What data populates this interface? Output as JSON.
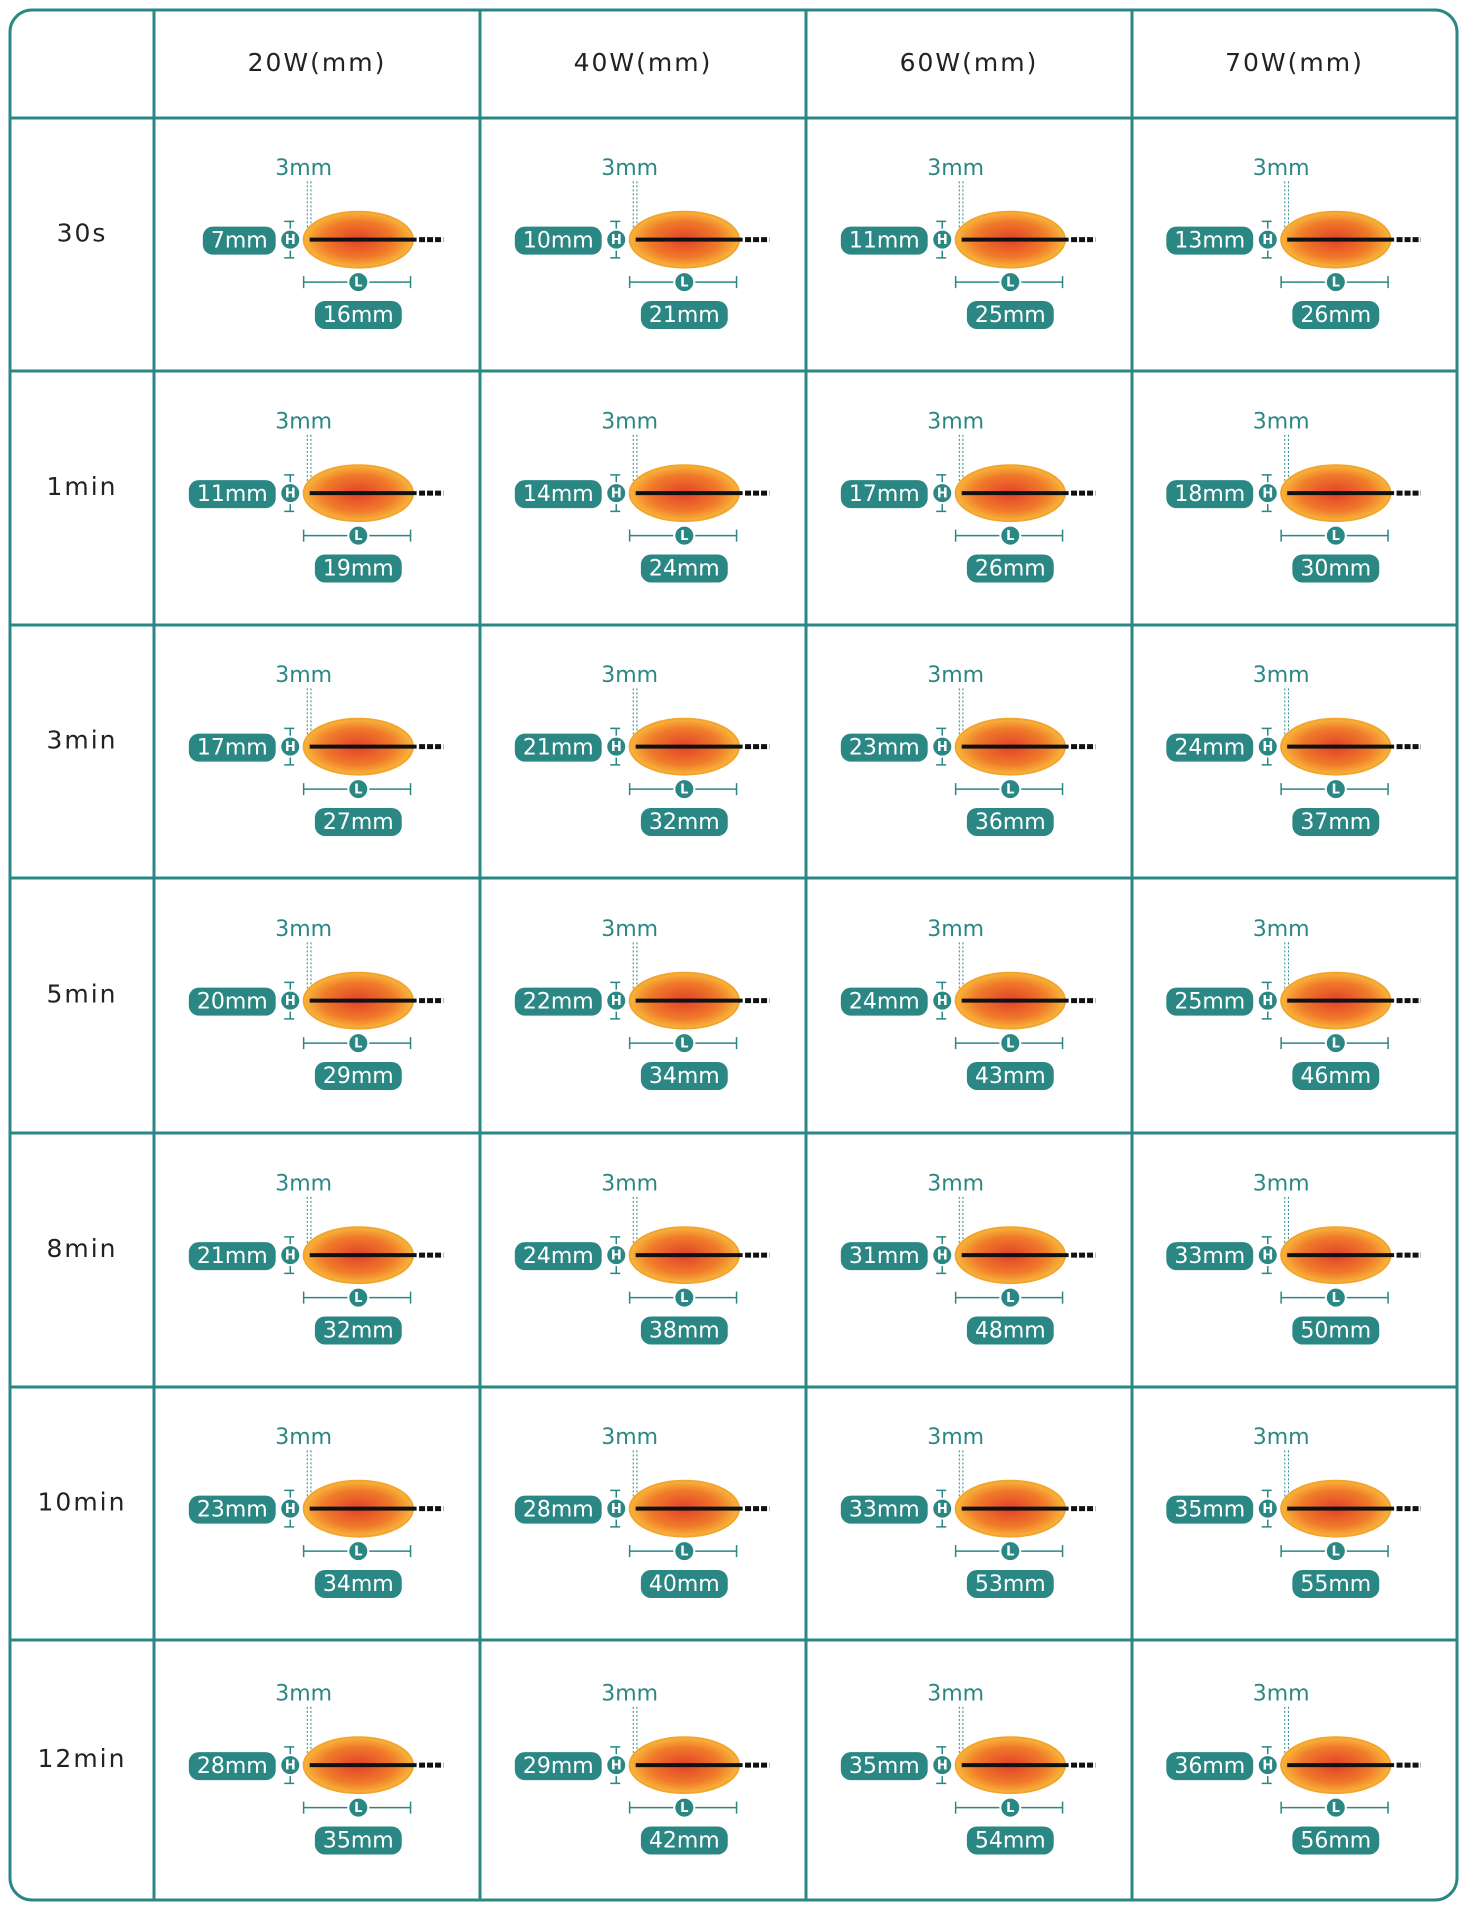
{
  "table": {
    "columns": [
      "20W(mm)",
      "40W(mm)",
      "60W(mm)",
      "70W(mm)"
    ],
    "markers": {
      "height": "H",
      "length": "L"
    },
    "rows": [
      {
        "label": "30s",
        "cells": [
          {
            "tip": "3mm",
            "h": "7mm",
            "l": "16mm"
          },
          {
            "tip": "3mm",
            "h": "10mm",
            "l": "21mm"
          },
          {
            "tip": "3mm",
            "h": "11mm",
            "l": "25mm"
          },
          {
            "tip": "3mm",
            "h": "13mm",
            "l": "26mm"
          }
        ]
      },
      {
        "label": "1min",
        "cells": [
          {
            "tip": "3mm",
            "h": "11mm",
            "l": "19mm"
          },
          {
            "tip": "3mm",
            "h": "14mm",
            "l": "24mm"
          },
          {
            "tip": "3mm",
            "h": "17mm",
            "l": "26mm"
          },
          {
            "tip": "3mm",
            "h": "18mm",
            "l": "30mm"
          }
        ]
      },
      {
        "label": "3min",
        "cells": [
          {
            "tip": "3mm",
            "h": "17mm",
            "l": "27mm"
          },
          {
            "tip": "3mm",
            "h": "21mm",
            "l": "32mm"
          },
          {
            "tip": "3mm",
            "h": "23mm",
            "l": "36mm"
          },
          {
            "tip": "3mm",
            "h": "24mm",
            "l": "37mm"
          }
        ]
      },
      {
        "label": "5min",
        "cells": [
          {
            "tip": "3mm",
            "h": "20mm",
            "l": "29mm"
          },
          {
            "tip": "3mm",
            "h": "22mm",
            "l": "34mm"
          },
          {
            "tip": "3mm",
            "h": "24mm",
            "l": "43mm"
          },
          {
            "tip": "3mm",
            "h": "25mm",
            "l": "46mm"
          }
        ]
      },
      {
        "label": "8min",
        "cells": [
          {
            "tip": "3mm",
            "h": "21mm",
            "l": "32mm"
          },
          {
            "tip": "3mm",
            "h": "24mm",
            "l": "38mm"
          },
          {
            "tip": "3mm",
            "h": "31mm",
            "l": "48mm"
          },
          {
            "tip": "3mm",
            "h": "33mm",
            "l": "50mm"
          }
        ]
      },
      {
        "label": "10min",
        "cells": [
          {
            "tip": "3mm",
            "h": "23mm",
            "l": "34mm"
          },
          {
            "tip": "3mm",
            "h": "28mm",
            "l": "40mm"
          },
          {
            "tip": "3mm",
            "h": "33mm",
            "l": "53mm"
          },
          {
            "tip": "3mm",
            "h": "35mm",
            "l": "55mm"
          }
        ]
      },
      {
        "label": "12min",
        "cells": [
          {
            "tip": "3mm",
            "h": "28mm",
            "l": "35mm"
          },
          {
            "tip": "3mm",
            "h": "29mm",
            "l": "42mm"
          },
          {
            "tip": "3mm",
            "h": "35mm",
            "l": "54mm"
          },
          {
            "tip": "3mm",
            "h": "36mm",
            "l": "56mm"
          }
        ]
      }
    ]
  }
}
